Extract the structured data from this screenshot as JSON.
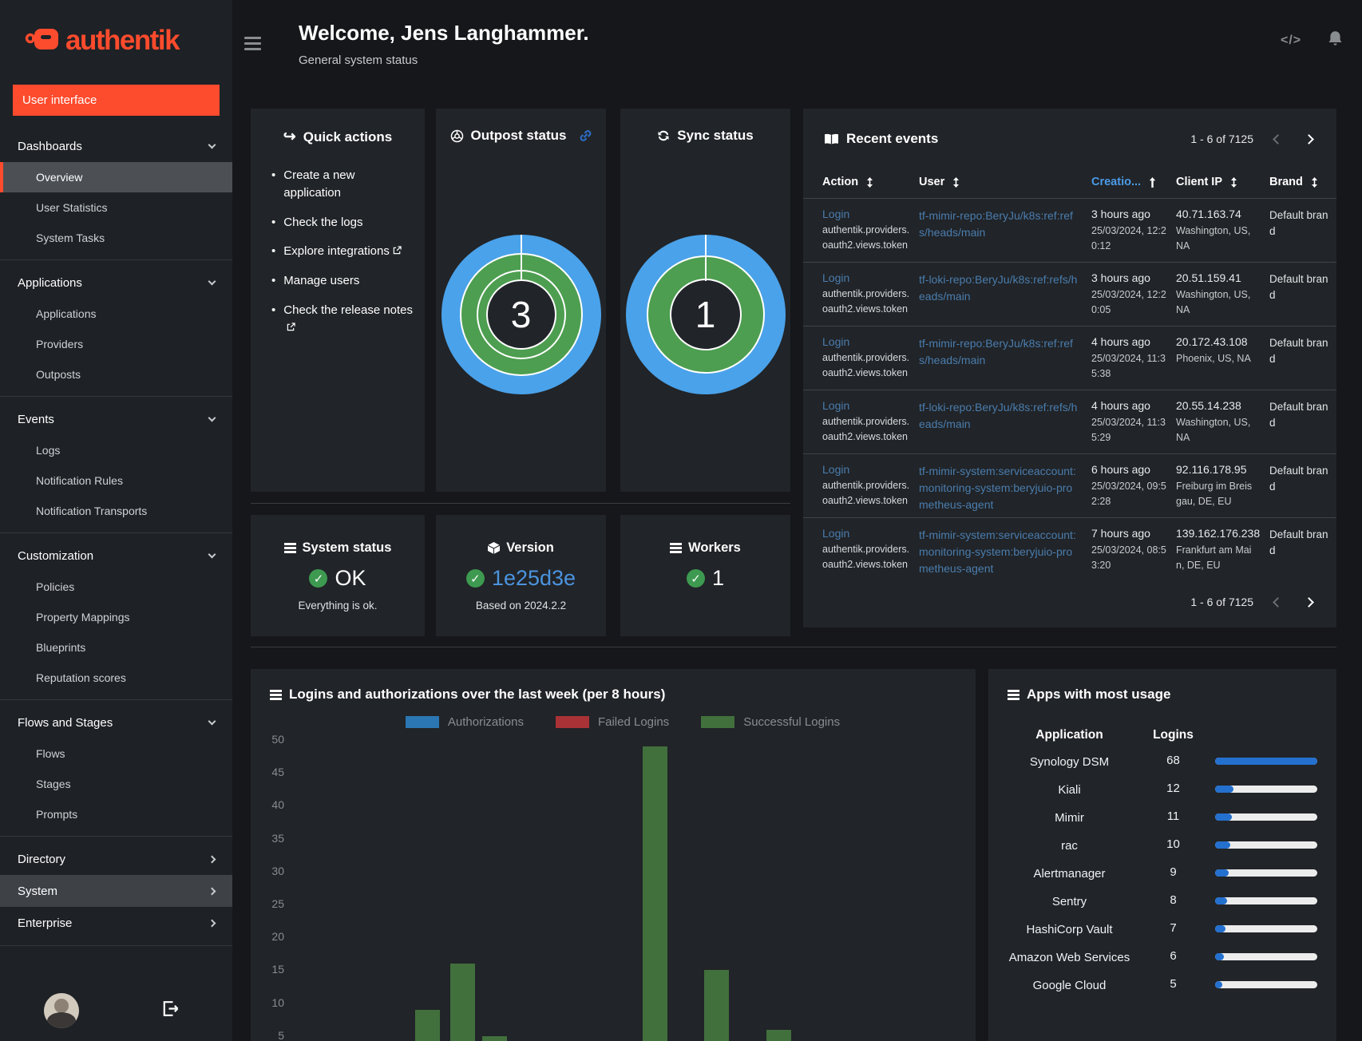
{
  "app": {
    "brand": "authentik"
  },
  "colors": {
    "accent_orange": "#fd4b2d",
    "link_blue": "#4a7dae",
    "bright_link_blue": "#4b9be8",
    "success_green": "#3d9a50",
    "donut_blue": "#4aa2ea",
    "donut_green": "#4d9e50",
    "usage_bar_blue": "#2470cf"
  },
  "sidebar": {
    "user_interface_button": "User interface",
    "sections": [
      {
        "label": "Dashboards",
        "state": "expanded",
        "items": [
          {
            "label": "Overview",
            "active": true
          },
          {
            "label": "User Statistics"
          },
          {
            "label": "System Tasks"
          }
        ]
      },
      {
        "label": "Applications",
        "state": "expanded",
        "items": [
          {
            "label": "Applications"
          },
          {
            "label": "Providers"
          },
          {
            "label": "Outposts"
          }
        ]
      },
      {
        "label": "Events",
        "state": "expanded",
        "items": [
          {
            "label": "Logs"
          },
          {
            "label": "Notification Rules"
          },
          {
            "label": "Notification Transports"
          }
        ]
      },
      {
        "label": "Customization",
        "state": "expanded",
        "items": [
          {
            "label": "Policies"
          },
          {
            "label": "Property Mappings"
          },
          {
            "label": "Blueprints"
          },
          {
            "label": "Reputation scores"
          }
        ]
      },
      {
        "label": "Flows and Stages",
        "state": "expanded",
        "items": [
          {
            "label": "Flows"
          },
          {
            "label": "Stages"
          },
          {
            "label": "Prompts"
          }
        ]
      },
      {
        "label": "Directory",
        "state": "collapsed",
        "items": []
      },
      {
        "label": "System",
        "state": "collapsed",
        "highlighted": true,
        "items": []
      },
      {
        "label": "Enterprise",
        "state": "collapsed",
        "items": []
      }
    ]
  },
  "header": {
    "title": "Welcome, Jens Langhammer.",
    "subtitle": "General system status"
  },
  "quick_actions": {
    "title": "Quick actions",
    "items": [
      {
        "label": "Create a new application"
      },
      {
        "label": "Check the logs"
      },
      {
        "label": "Explore integrations",
        "external": true
      },
      {
        "label": "Manage users"
      },
      {
        "label": "Check the release notes",
        "external": true
      }
    ]
  },
  "outpost_status": {
    "title": "Outpost status",
    "value": "3"
  },
  "sync_status": {
    "title": "Sync status",
    "value": "1"
  },
  "recent_events": {
    "title": "Recent events",
    "pagination": "1 - 6 of 7125",
    "columns": [
      {
        "label": "Action",
        "sort": "both"
      },
      {
        "label": "User",
        "sort": "both"
      },
      {
        "label": "Creatio...",
        "sort": "asc",
        "active": true
      },
      {
        "label": "Client IP",
        "sort": "both"
      },
      {
        "label": "Brand",
        "sort": "both"
      }
    ],
    "rows": [
      {
        "action": "Login",
        "action_detail": "authentik.providers.oauth2.views.token",
        "user": "tf-mimir-repo:BeryJu/k8s:ref:refs/heads/main",
        "time_rel": "3 hours ago",
        "time_abs": "25/03/2024, 12:20:12",
        "ip": "40.71.163.74",
        "location": "Washington, US, NA",
        "brand": "Default brand"
      },
      {
        "action": "Login",
        "action_detail": "authentik.providers.oauth2.views.token",
        "user": "tf-loki-repo:BeryJu/k8s:ref:refs/heads/main",
        "time_rel": "3 hours ago",
        "time_abs": "25/03/2024, 12:20:05",
        "ip": "20.51.159.41",
        "location": "Washington, US, NA",
        "brand": "Default brand"
      },
      {
        "action": "Login",
        "action_detail": "authentik.providers.oauth2.views.token",
        "user": "tf-mimir-repo:BeryJu/k8s:ref:refs/heads/main",
        "time_rel": "4 hours ago",
        "time_abs": "25/03/2024, 11:35:38",
        "ip": "20.172.43.108",
        "location": "Phoenix, US, NA",
        "brand": "Default brand"
      },
      {
        "action": "Login",
        "action_detail": "authentik.providers.oauth2.views.token",
        "user": "tf-loki-repo:BeryJu/k8s:ref:refs/heads/main",
        "time_rel": "4 hours ago",
        "time_abs": "25/03/2024, 11:35:29",
        "ip": "20.55.14.238",
        "location": "Washington, US, NA",
        "brand": "Default brand"
      },
      {
        "action": "Login",
        "action_detail": "authentik.providers.oauth2.views.token",
        "user": "tf-mimir-system:serviceaccount:monitoring-system:beryjuio-prometheus-agent",
        "time_rel": "6 hours ago",
        "time_abs": "25/03/2024, 09:52:28",
        "ip": "92.116.178.95",
        "location": "Freiburg im Breisgau, DE, EU",
        "brand": "Default brand"
      },
      {
        "action": "Login",
        "action_detail": "authentik.providers.oauth2.views.token",
        "user": "tf-mimir-system:serviceaccount:monitoring-system:beryjuio-prometheus-agent",
        "time_rel": "7 hours ago",
        "time_abs": "25/03/2024, 08:53:20",
        "ip": "139.162.176.238",
        "location": "Frankfurt am Main, DE, EU",
        "brand": "Default brand"
      }
    ]
  },
  "system_status": {
    "title": "System status",
    "value": "OK",
    "description": "Everything is ok."
  },
  "version": {
    "title": "Version",
    "value": "1e25d3e",
    "description": "Based on 2024.2.2"
  },
  "workers": {
    "title": "Workers",
    "value": "1"
  },
  "chart_data": {
    "type": "bar",
    "title": "Logins and authorizations over the last week (per 8 hours)",
    "ylim": [
      0,
      50
    ],
    "yticks": [
      50,
      45,
      40,
      35,
      30,
      25,
      20,
      15,
      10,
      5
    ],
    "grid": false,
    "legend_position": "top",
    "x_tick_labels_visible": false,
    "series": [
      {
        "name": "Authorizations",
        "color": "#2b77b3",
        "bars": []
      },
      {
        "name": "Failed Logins",
        "color": "#a93236",
        "bars": []
      },
      {
        "name": "Successful Logins",
        "color": "#41703c",
        "bars": [
          {
            "x_frac": 0.19,
            "value": 9
          },
          {
            "x_frac": 0.243,
            "value": 16
          },
          {
            "x_frac": 0.29,
            "value": 5
          },
          {
            "x_frac": 0.53,
            "value": 49
          },
          {
            "x_frac": 0.621,
            "value": 15
          },
          {
            "x_frac": 0.714,
            "value": 6
          }
        ]
      }
    ]
  },
  "apps_usage": {
    "title": "Apps with most usage",
    "columns": {
      "application": "Application",
      "logins": "Logins"
    },
    "rows": [
      {
        "application": "Synology DSM",
        "logins": 68
      },
      {
        "application": "Kiali",
        "logins": 12
      },
      {
        "application": "Mimir",
        "logins": 11
      },
      {
        "application": "rac",
        "logins": 10
      },
      {
        "application": "Alertmanager",
        "logins": 9
      },
      {
        "application": "Sentry",
        "logins": 8
      },
      {
        "application": "HashiCorp Vault",
        "logins": 7
      },
      {
        "application": "Amazon Web Services",
        "logins": 6
      },
      {
        "application": "Google Cloud",
        "logins": 5
      }
    ]
  }
}
